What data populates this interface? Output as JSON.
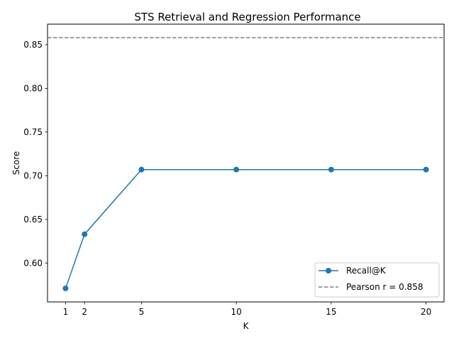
{
  "chart_data": {
    "type": "line",
    "title": "STS Retrieval and Regression Performance",
    "xlabel": "K",
    "ylabel": "Score",
    "x": [
      1,
      2,
      5,
      10,
      15,
      20
    ],
    "series": [
      {
        "name": "Recall@K",
        "values": [
          0.571,
          0.633,
          0.707,
          0.707,
          0.707,
          0.707
        ],
        "color": "#1f77b4",
        "marker": "circle"
      }
    ],
    "reference_lines": [
      {
        "name": "Pearson r = 0.858",
        "y": 0.858,
        "color": "#808080",
        "style": "dashed"
      }
    ],
    "xlim": [
      0.05,
      20.95
    ],
    "ylim": [
      0.5555,
      0.8735
    ],
    "xticks": [
      1,
      2,
      5,
      10,
      15,
      20
    ],
    "xtick_labels": [
      "1",
      "2",
      "5",
      "10",
      "15",
      "20"
    ],
    "yticks": [
      0.6,
      0.65,
      0.7,
      0.75,
      0.8,
      0.85
    ],
    "ytick_labels": [
      "0.60",
      "0.65",
      "0.70",
      "0.75",
      "0.80",
      "0.85"
    ],
    "grid": false,
    "legend_position": "lower-right"
  }
}
